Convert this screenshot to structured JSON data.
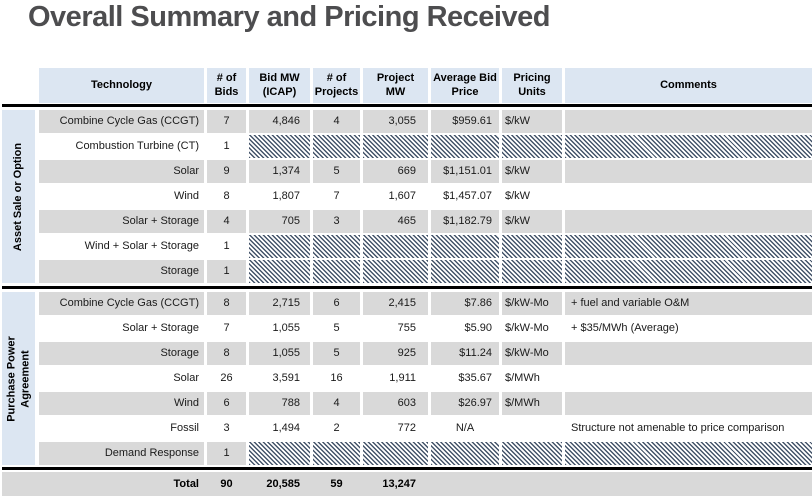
{
  "page": {
    "title": "Overall Summary and Pricing Received"
  },
  "colors": {
    "header_blue": "#dce6f2",
    "row_gray": "#d9d9d9",
    "hatch_dark": "#44546a",
    "line_black": "#000000",
    "title_text": "#4d4d4f"
  },
  "table": {
    "columns": {
      "technology": "Technology",
      "bids": "# of\nBids",
      "bid_mw": "Bid MW\n(ICAP)",
      "projects": "# of\nProjects",
      "project_mw": "Project\nMW",
      "avg_price": "Average Bid\nPrice",
      "units": "Pricing\nUnits",
      "comments": "Comments"
    },
    "groups": [
      {
        "label": "Asset Sale or Option",
        "rows": [
          {
            "technology": "Combine Cycle Gas (CCGT)",
            "bids": "7",
            "bid_mw": "4,846",
            "projects": "4",
            "project_mw": "3,055",
            "avg_price": "$959.61",
            "units": "$/kW",
            "comment": "",
            "hatched": false
          },
          {
            "technology": "Combustion Turbine (CT)",
            "bids": "1",
            "hatched": true
          },
          {
            "technology": "Solar",
            "bids": "9",
            "bid_mw": "1,374",
            "projects": "5",
            "project_mw": "669",
            "avg_price": "$1,151.01",
            "units": "$/kW",
            "comment": "",
            "hatched": false
          },
          {
            "technology": "Wind",
            "bids": "8",
            "bid_mw": "1,807",
            "projects": "7",
            "project_mw": "1,607",
            "avg_price": "$1,457.07",
            "units": "$/kW",
            "comment": "",
            "hatched": false
          },
          {
            "technology": "Solar + Storage",
            "bids": "4",
            "bid_mw": "705",
            "projects": "3",
            "project_mw": "465",
            "avg_price": "$1,182.79",
            "units": "$/kW",
            "comment": "",
            "hatched": false
          },
          {
            "technology": "Wind + Solar + Storage",
            "bids": "1",
            "hatched": true
          },
          {
            "technology": "Storage",
            "bids": "1",
            "hatched": true
          }
        ]
      },
      {
        "label": "Purchase Power\nAgreement",
        "rows": [
          {
            "technology": "Combine Cycle Gas (CCGT)",
            "bids": "8",
            "bid_mw": "2,715",
            "projects": "6",
            "project_mw": "2,415",
            "avg_price": "$7.86",
            "units": "$/kW-Mo",
            "comment": "+ fuel and variable O&M",
            "hatched": false
          },
          {
            "technology": "Solar + Storage",
            "bids": "7",
            "bid_mw": "1,055",
            "projects": "5",
            "project_mw": "755",
            "avg_price": "$5.90",
            "units": "$/kW-Mo",
            "comment": "+ $35/MWh (Average)",
            "hatched": false
          },
          {
            "technology": "Storage",
            "bids": "8",
            "bid_mw": "1,055",
            "projects": "5",
            "project_mw": "925",
            "avg_price": "$11.24",
            "units": "$/kW-Mo",
            "comment": "",
            "hatched": false
          },
          {
            "technology": "Solar",
            "bids": "26",
            "bid_mw": "3,591",
            "projects": "16",
            "project_mw": "1,911",
            "avg_price": "$35.67",
            "units": "$/MWh",
            "comment": "",
            "hatched": false
          },
          {
            "technology": "Wind",
            "bids": "6",
            "bid_mw": "788",
            "projects": "4",
            "project_mw": "603",
            "avg_price": "$26.97",
            "units": "$/MWh",
            "comment": "",
            "hatched": false
          },
          {
            "technology": "Fossil",
            "bids": "3",
            "bid_mw": "1,494",
            "projects": "2",
            "project_mw": "772",
            "avg_price": "N/A",
            "units": "",
            "comment": "Structure not amenable to price comparison",
            "hatched": false
          },
          {
            "technology": "Demand Response",
            "bids": "1",
            "hatched": true
          }
        ]
      }
    ],
    "total": {
      "label": "Total",
      "bids": "90",
      "bid_mw": "20,585",
      "projects": "59",
      "project_mw": "13,247"
    }
  }
}
